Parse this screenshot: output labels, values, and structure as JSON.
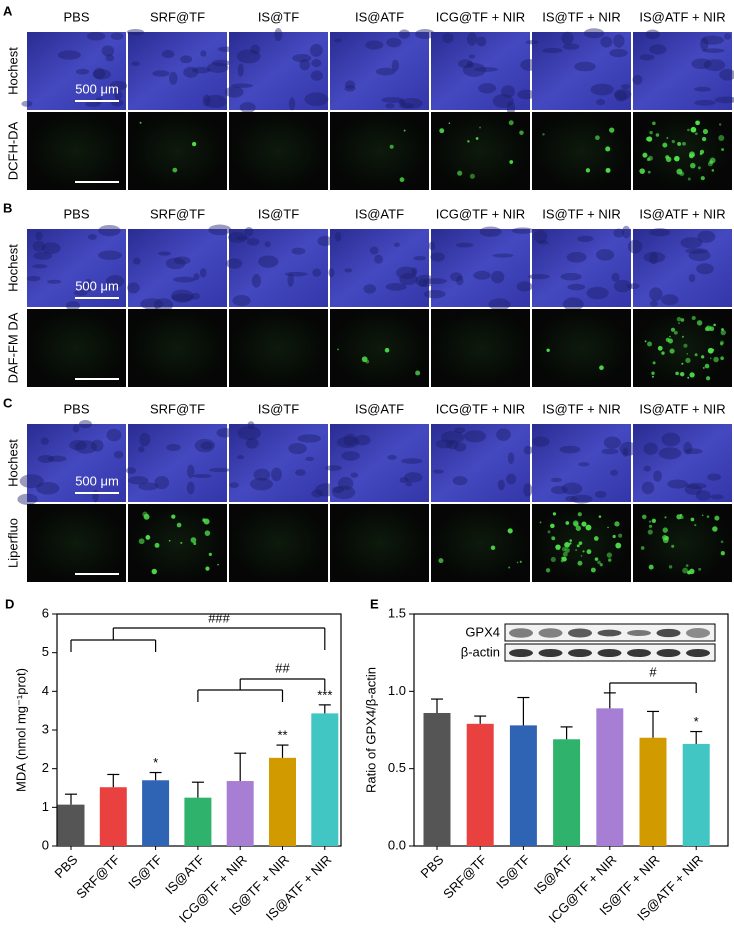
{
  "panels": [
    {
      "label": "A",
      "columns": [
        "PBS",
        "SRF@TF",
        "IS@TF",
        "IS@ATF",
        "ICG@TF + NIR",
        "IS@TF + NIR",
        "IS@ATF + NIR"
      ],
      "rows": [
        "Hochest",
        "DCFH-DA"
      ],
      "scale_bar": "500 μm"
    },
    {
      "label": "B",
      "columns": [
        "PBS",
        "SRF@TF",
        "IS@TF",
        "IS@ATF",
        "ICG@TF + NIR",
        "IS@TF + NIR",
        "IS@ATF + NIR"
      ],
      "rows": [
        "Hochest",
        "DAF-FM DA"
      ],
      "scale_bar": "500 μm"
    },
    {
      "label": "C",
      "columns": [
        "PBS",
        "SRF@TF",
        "IS@TF",
        "IS@ATF",
        "ICG@TF + NIR",
        "IS@TF + NIR",
        "IS@ATF + NIR"
      ],
      "rows": [
        "Hochest",
        "Liperfluo"
      ],
      "scale_bar": "500 μm"
    }
  ],
  "chart_data": [
    {
      "type": "bar",
      "panel_label": "D",
      "ylabel": "MDA (nmol mg⁻¹prot)",
      "categories": [
        "PBS",
        "SRF@TF",
        "IS@TF",
        "IS@ATF",
        "ICG@TF + NIR",
        "IS@TF + NIR",
        "IS@ATF + NIR"
      ],
      "values": [
        1.07,
        1.52,
        1.7,
        1.25,
        1.68,
        2.28,
        3.43
      ],
      "errors": [
        0.27,
        0.33,
        0.2,
        0.4,
        0.72,
        0.33,
        0.22
      ],
      "colors": [
        "#555555",
        "#e8413f",
        "#2f64b5",
        "#2fb26c",
        "#a67fd5",
        "#d19b00",
        "#41c6c3"
      ],
      "ylim": [
        0,
        6
      ],
      "yticks": [
        0,
        1,
        2,
        3,
        4,
        5,
        6
      ],
      "annotations": [
        "*",
        "**",
        "***",
        "###",
        "##"
      ]
    },
    {
      "type": "bar",
      "panel_label": "E",
      "ylabel": "Ratio of GPX4/β-actin",
      "categories": [
        "PBS",
        "SRF@TF",
        "IS@TF",
        "IS@ATF",
        "ICG@TF + NIR",
        "IS@TF + NIR",
        "IS@ATF + NIR"
      ],
      "values": [
        0.86,
        0.79,
        0.78,
        0.69,
        0.89,
        0.7,
        0.66
      ],
      "errors": [
        0.09,
        0.05,
        0.18,
        0.08,
        0.1,
        0.17,
        0.08
      ],
      "colors": [
        "#555555",
        "#e8413f",
        "#2f64b5",
        "#2fb26c",
        "#a67fd5",
        "#d19b00",
        "#41c6c3"
      ],
      "ylim": [
        0,
        1.5
      ],
      "yticks": [
        {
          "value": 0,
          "label": "0.0"
        },
        {
          "value": 0.5,
          "label": "0.5"
        },
        {
          "value": 1,
          "label": "1.0"
        },
        {
          "value": 1.5,
          "label": "1.5"
        }
      ],
      "blot_labels": [
        "GPX4",
        "β-actin"
      ],
      "annotations": [
        "#",
        "*"
      ]
    }
  ]
}
